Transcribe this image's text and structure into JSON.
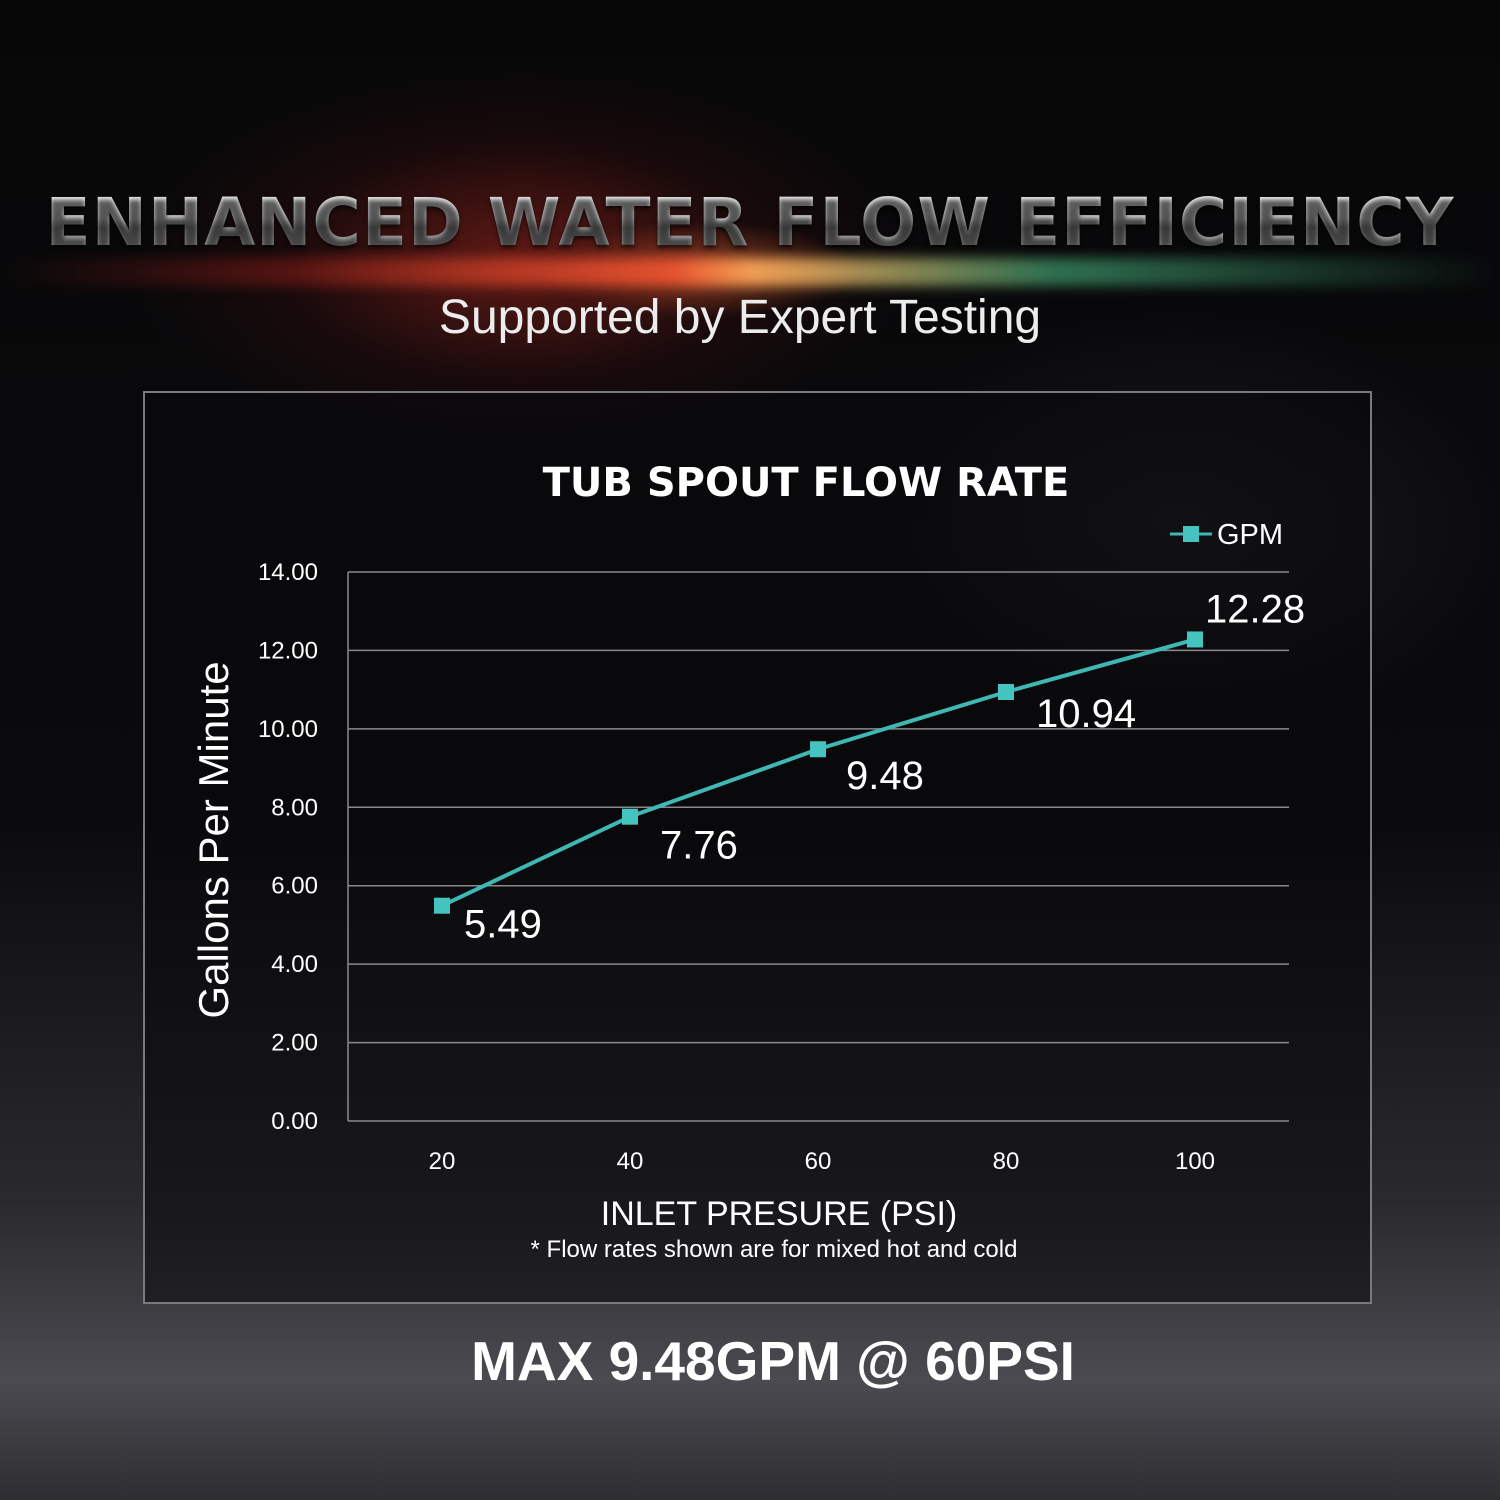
{
  "headline": "ENHANCED WATER FLOW EFFICIENCY",
  "subheadline": "Supported by Expert Testing",
  "footer": "MAX 9.48GPM @ 60PSI",
  "colors": {
    "line": "#3fb8b4",
    "marker": "#45c4bf",
    "grid": "#8a8a8a",
    "text": "#ffffff"
  },
  "chart_data": {
    "type": "line",
    "title": "TUB SPOUT FLOW RATE",
    "xlabel": "INLET PRESURE (PSI)",
    "ylabel": "Gallons Per Minute",
    "note": "* Flow rates shown are for mixed hot and cold",
    "categories": [
      "20",
      "40",
      "60",
      "80",
      "100"
    ],
    "series": [
      {
        "name": "GPM",
        "values": [
          5.49,
          7.76,
          9.48,
          10.94,
          12.28
        ],
        "labels": [
          "5.49",
          "7.76",
          "9.48",
          "10.94",
          "12.28"
        ]
      }
    ],
    "ylim": [
      0,
      14
    ],
    "yticks": [
      "0.00",
      "2.00",
      "4.00",
      "6.00",
      "8.00",
      "10.00",
      "12.00",
      "14.00"
    ],
    "grid": true,
    "legend_position": "top-right"
  }
}
